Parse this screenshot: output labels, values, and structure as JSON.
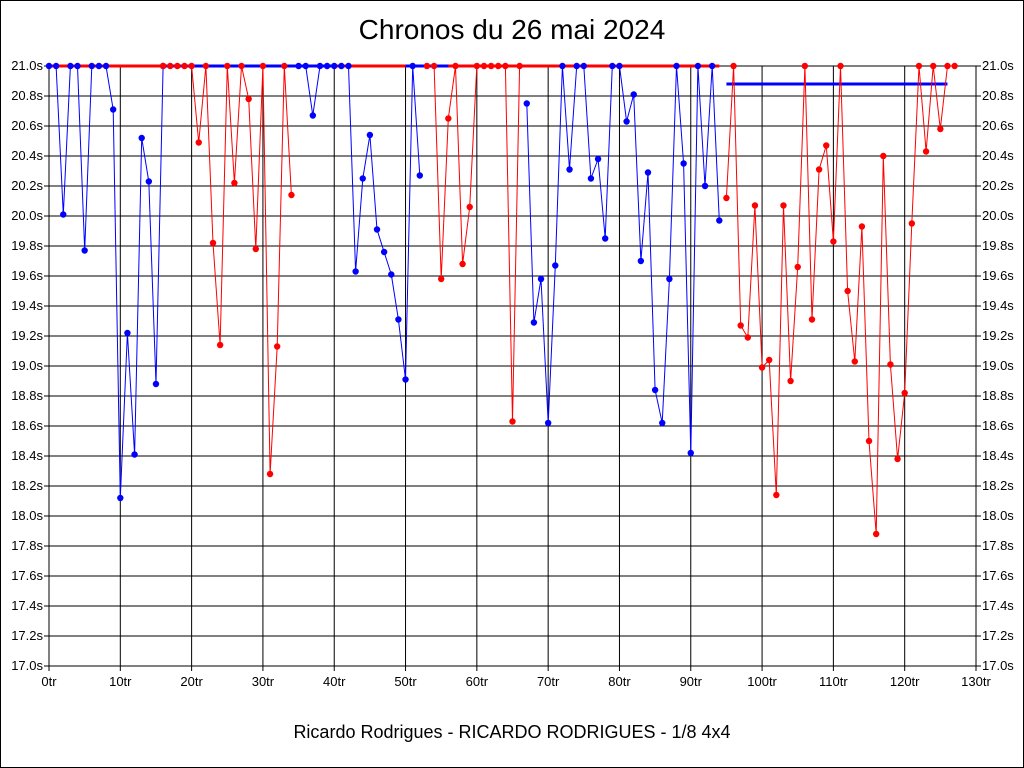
{
  "title": "Chronos du 26 mai 2024",
  "footer": "Ricardo Rodrigues - RICARDO RODRIGUES - 1/8 4x4",
  "colors": {
    "red": "#ff0000",
    "blue": "#0000ff",
    "grid": "#000000"
  },
  "chart_data": {
    "type": "line",
    "title": "Chronos du 26 mai 2024",
    "xlabel": "",
    "ylabel": "",
    "xlim": [
      0,
      130
    ],
    "ylim": [
      17.0,
      21.0
    ],
    "grid": true,
    "x_ticks": [
      "0tr",
      "10tr",
      "20tr",
      "30tr",
      "40tr",
      "50tr",
      "60tr",
      "70tr",
      "80tr",
      "90tr",
      "100tr",
      "110tr",
      "120tr",
      "130tr"
    ],
    "y_ticks": [
      "17.0s",
      "17.2s",
      "17.4s",
      "17.6s",
      "17.8s",
      "18.0s",
      "18.2s",
      "18.4s",
      "18.6s",
      "18.8s",
      "19.0s",
      "19.2s",
      "19.4s",
      "19.6s",
      "19.8s",
      "20.0s",
      "20.2s",
      "20.4s",
      "20.6s",
      "20.8s",
      "21.0s"
    ],
    "reference_lines": [
      {
        "color": "red",
        "x": [
          0,
          94
        ],
        "y": 21.0
      },
      {
        "color": "blue",
        "x": [
          16,
          40
        ],
        "y": 21.0
      },
      {
        "color": "blue",
        "x": [
          50,
          56
        ],
        "y": 21.0
      },
      {
        "color": "blue",
        "x": [
          95,
          126
        ],
        "y": 20.88
      }
    ],
    "series": [
      {
        "color": "blue",
        "x": [
          0,
          1,
          2,
          3,
          4,
          5,
          6,
          7,
          8,
          9,
          10,
          11,
          12,
          13,
          14,
          15,
          16
        ],
        "y": [
          21.0,
          21.0,
          20.01,
          21.0,
          21.0,
          19.77,
          21.0,
          21.0,
          21.0,
          20.71,
          18.12,
          19.22,
          18.41,
          20.52,
          20.23,
          18.88,
          21.0
        ]
      },
      {
        "color": "red",
        "x": [
          16,
          17,
          18,
          19,
          20,
          21,
          22,
          23,
          24,
          25,
          26,
          27,
          28,
          29,
          30,
          31,
          32,
          33,
          34
        ],
        "y": [
          21.0,
          21.0,
          21.0,
          21.0,
          21.0,
          20.49,
          21.0,
          19.82,
          19.14,
          21.0,
          20.22,
          21.0,
          20.78,
          19.78,
          21.0,
          18.28,
          19.13,
          21.0,
          20.14
        ]
      },
      {
        "color": "blue",
        "x": [
          35,
          36,
          37,
          38,
          39,
          40,
          41,
          42,
          43,
          44,
          45,
          46,
          47,
          48,
          49,
          50,
          51,
          52
        ],
        "y": [
          21.0,
          21.0,
          20.67,
          21.0,
          21.0,
          21.0,
          21.0,
          21.0,
          19.63,
          20.25,
          20.54,
          19.91,
          19.76,
          19.61,
          19.31,
          18.91,
          21.0,
          20.27
        ]
      },
      {
        "color": "red",
        "x": [
          53,
          54,
          55,
          56,
          57,
          58,
          59,
          60,
          61,
          62,
          63,
          64,
          65,
          66
        ],
        "y": [
          21.0,
          21.0,
          19.58,
          20.65,
          21.0,
          19.68,
          20.06,
          21.0,
          21.0,
          21.0,
          21.0,
          21.0,
          18.63,
          21.0
        ]
      },
      {
        "color": "blue",
        "x": [
          67,
          68,
          69,
          70,
          71,
          72,
          73,
          74,
          75,
          76,
          77,
          78,
          79,
          80,
          81,
          82,
          83,
          84,
          85,
          86,
          87,
          88,
          89,
          90,
          91,
          92,
          93,
          94
        ],
        "y": [
          20.75,
          19.29,
          19.58,
          18.62,
          19.67,
          21.0,
          20.31,
          21.0,
          21.0,
          20.25,
          20.38,
          19.85,
          21.0,
          21.0,
          20.63,
          20.81,
          19.7,
          20.29,
          18.84,
          18.62,
          19.58,
          21.0,
          20.35,
          18.42,
          21.0,
          20.2,
          21.0,
          19.97
        ]
      },
      {
        "color": "red",
        "x": [
          95,
          96,
          97,
          98,
          99,
          100,
          101,
          102,
          103,
          104,
          105,
          106,
          107,
          108,
          109,
          110,
          111,
          112,
          113,
          114,
          115,
          116,
          117,
          118,
          119,
          120,
          121,
          122,
          123,
          124,
          125,
          126,
          127
        ],
        "y": [
          20.12,
          21.0,
          19.27,
          19.19,
          20.07,
          18.99,
          19.04,
          18.14,
          20.07,
          18.9,
          19.66,
          21.0,
          19.31,
          20.31,
          20.47,
          19.83,
          21.0,
          19.5,
          19.03,
          19.93,
          18.5,
          17.88,
          20.4,
          19.01,
          18.38,
          18.82,
          19.95,
          21.0,
          20.43,
          21.0,
          20.58,
          21.0,
          21.0
        ]
      }
    ]
  }
}
